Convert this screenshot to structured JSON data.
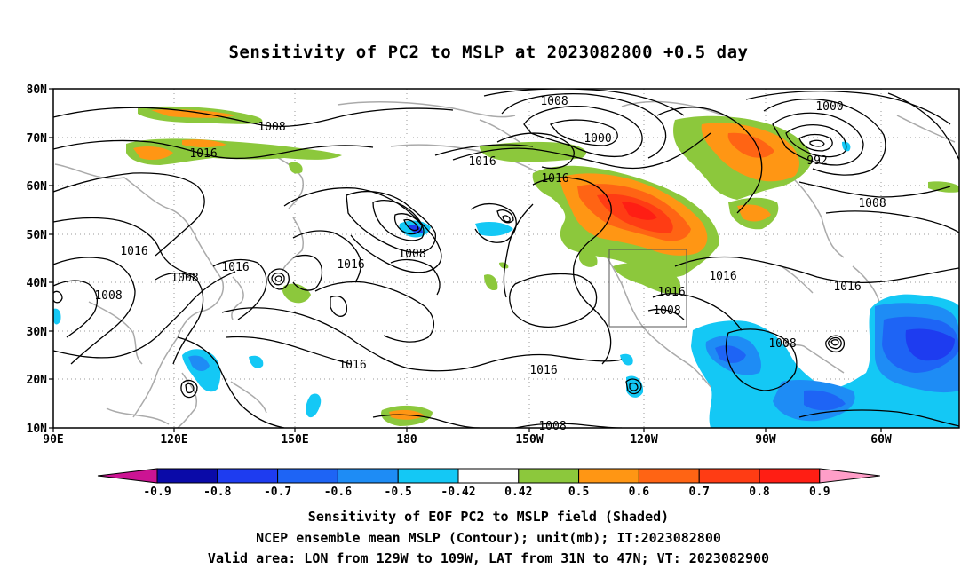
{
  "title": "Sensitivity of PC2 to MSLP at 2023082800 +0.5 day",
  "lat_labels": [
    "80N",
    "70N",
    "60N",
    "50N",
    "40N",
    "30N",
    "20N",
    "10N"
  ],
  "lon_labels": [
    "90E",
    "120E",
    "150E",
    "180",
    "150W",
    "120W",
    "90W",
    "60W"
  ],
  "contour_labels": [
    "1008",
    "1016",
    "1016",
    "1016",
    "1008",
    "1016",
    "1008",
    "1016",
    "1008",
    "1000",
    "1016",
    "1016",
    "1000",
    "992",
    "1008",
    "1016",
    "1016",
    "1008",
    "1016",
    "1008",
    "1016",
    "1008",
    "1008"
  ],
  "colorbar": {
    "labels": [
      "-0.9",
      "-0.8",
      "-0.7",
      "-0.6",
      "-0.5",
      "-0.42",
      "0.42",
      "0.5",
      "0.6",
      "0.7",
      "0.8",
      "0.9"
    ],
    "colors": [
      "#0a0aa8",
      "#1e3cf0",
      "#1e64f5",
      "#1e8cf5",
      "#14c8f5",
      "#ffffff",
      "#8cc83c",
      "#ff9614",
      "#ff6414",
      "#ff3c14",
      "#ff1e14"
    ],
    "low_end_color": "#cc1493",
    "high_end_color": "#ff9ec8"
  },
  "captions": [
    "Sensitivity of EOF PC2 to MSLP field (Shaded)",
    "NCEP ensemble mean MSLP (Contour); unit(mb); IT:2023082800",
    "Valid area: LON from 129W to 109W, LAT from 31N to 47N; VT: 2023082900"
  ]
}
